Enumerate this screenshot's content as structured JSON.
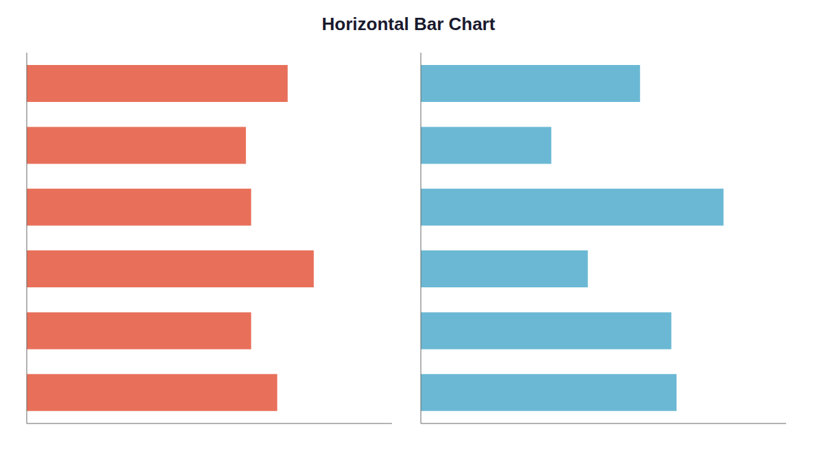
{
  "chart_data": {
    "type": "bar",
    "title": "Horizontal Bar Chart",
    "orientation": "horizontal",
    "categories": [
      null,
      null,
      null,
      null,
      null,
      null
    ],
    "series": [
      {
        "color": "#E8705A",
        "values": [
          5.0,
          4.2,
          4.3,
          5.5,
          4.3,
          4.8
        ]
      },
      {
        "color": "#6BB8D4",
        "values": [
          4.2,
          2.5,
          5.8,
          3.2,
          4.8,
          4.9
        ]
      }
    ],
    "xlim": [
      0,
      7
    ],
    "tick_labels": false,
    "grid": false
  }
}
